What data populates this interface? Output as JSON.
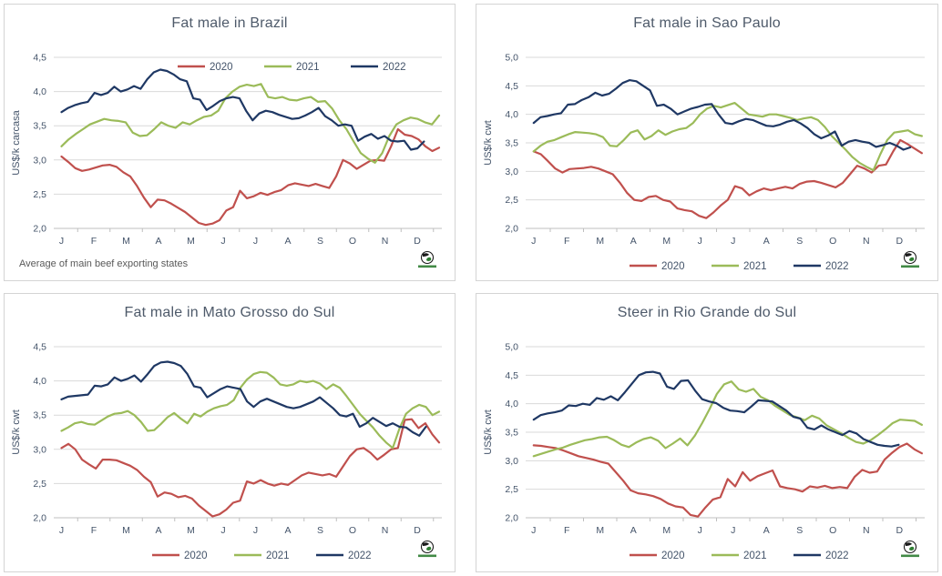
{
  "style": {
    "series_colors": {
      "2020": "#C0504D",
      "2021": "#9BBB59",
      "2022": "#1F3864"
    },
    "grid_color": "#D9D9D9",
    "axis_line_color": "#BFBFBF",
    "axis_text_color": "#44546A",
    "title_color": "#4E5A6A",
    "footnote_color": "#595959",
    "logo_green": "#2E7D32",
    "logo_dark": "#1A1A1A"
  },
  "months": [
    "J",
    "F",
    "M",
    "A",
    "M",
    "J",
    "J",
    "A",
    "S",
    "O",
    "N",
    "D"
  ],
  "chart_data": [
    {
      "type": "line",
      "title": "Fat male in Brazil",
      "ylabel": "US$/k carcasa",
      "ylim": [
        2.0,
        4.5
      ],
      "ystep": 0.5,
      "decimal_style": "comma",
      "grid": true,
      "legend_position": "top-right-inset",
      "legend_entries": [
        "2020",
        "2021",
        "2022"
      ],
      "footnote": "Average of main beef exporting states",
      "x_categories": [
        "J",
        "F",
        "M",
        "A",
        "M",
        "J",
        "J",
        "A",
        "S",
        "O",
        "N",
        "D"
      ],
      "series": [
        {
          "name": "2020",
          "span": 1.0,
          "values": [
            3.05,
            2.97,
            2.88,
            2.84,
            2.86,
            2.89,
            2.92,
            2.93,
            2.9,
            2.82,
            2.76,
            2.62,
            2.45,
            2.31,
            2.42,
            2.41,
            2.36,
            2.3,
            2.24,
            2.16,
            2.08,
            2.05,
            2.07,
            2.12,
            2.26,
            2.31,
            2.55,
            2.44,
            2.47,
            2.52,
            2.49,
            2.53,
            2.56,
            2.63,
            2.66,
            2.64,
            2.62,
            2.65,
            2.62,
            2.59,
            2.76,
            3.0,
            2.95,
            2.87,
            2.93,
            2.99,
            3.0,
            2.99,
            3.2,
            3.45,
            3.37,
            3.35,
            3.3,
            3.2,
            3.13,
            3.18
          ]
        },
        {
          "name": "2021",
          "span": 1.0,
          "values": [
            3.2,
            3.3,
            3.38,
            3.45,
            3.52,
            3.56,
            3.6,
            3.58,
            3.57,
            3.55,
            3.4,
            3.35,
            3.36,
            3.45,
            3.55,
            3.5,
            3.47,
            3.55,
            3.52,
            3.58,
            3.63,
            3.65,
            3.72,
            3.9,
            4.0,
            4.07,
            4.1,
            4.08,
            4.11,
            3.92,
            3.9,
            3.92,
            3.88,
            3.87,
            3.9,
            3.92,
            3.85,
            3.86,
            3.75,
            3.58,
            3.45,
            3.27,
            3.1,
            3.02,
            2.96,
            3.1,
            3.35,
            3.52,
            3.58,
            3.62,
            3.6,
            3.55,
            3.52,
            3.65
          ]
        },
        {
          "name": "2022",
          "span": 0.96,
          "values": [
            3.7,
            3.76,
            3.8,
            3.83,
            3.85,
            3.98,
            3.95,
            3.98,
            4.07,
            4.0,
            4.03,
            4.08,
            4.04,
            4.18,
            4.28,
            4.32,
            4.3,
            4.25,
            4.18,
            4.15,
            3.9,
            3.88,
            3.73,
            3.79,
            3.86,
            3.9,
            3.92,
            3.9,
            3.72,
            3.58,
            3.68,
            3.72,
            3.7,
            3.66,
            3.63,
            3.6,
            3.61,
            3.65,
            3.7,
            3.76,
            3.64,
            3.58,
            3.5,
            3.52,
            3.5,
            3.28,
            3.34,
            3.38,
            3.31,
            3.35,
            3.28,
            3.27,
            3.28,
            3.15,
            3.17,
            3.27
          ]
        }
      ]
    },
    {
      "type": "line",
      "title": "Fat male in Sao Paulo",
      "ylabel": "US$/k cwt",
      "ylim": [
        2.0,
        5.0
      ],
      "ystep": 0.5,
      "decimal_style": "comma",
      "grid": true,
      "legend_position": "bottom",
      "legend_entries": [
        "2020",
        "2021",
        "2022"
      ],
      "footnote": "",
      "x_categories": [
        "J",
        "F",
        "M",
        "A",
        "M",
        "J",
        "J",
        "A",
        "S",
        "O",
        "N",
        "D"
      ],
      "series": [
        {
          "name": "2020",
          "span": 1.0,
          "values": [
            3.35,
            3.3,
            3.18,
            3.05,
            2.98,
            3.04,
            3.05,
            3.06,
            3.08,
            3.05,
            3.0,
            2.95,
            2.8,
            2.62,
            2.5,
            2.48,
            2.55,
            2.57,
            2.5,
            2.47,
            2.35,
            2.32,
            2.3,
            2.22,
            2.18,
            2.28,
            2.4,
            2.5,
            2.74,
            2.7,
            2.58,
            2.65,
            2.7,
            2.67,
            2.7,
            2.73,
            2.7,
            2.78,
            2.82,
            2.83,
            2.8,
            2.76,
            2.72,
            2.8,
            2.95,
            3.1,
            3.05,
            2.98,
            3.1,
            3.12,
            3.35,
            3.55,
            3.48,
            3.4,
            3.32
          ]
        },
        {
          "name": "2021",
          "span": 1.0,
          "values": [
            3.35,
            3.45,
            3.52,
            3.55,
            3.6,
            3.65,
            3.69,
            3.68,
            3.67,
            3.65,
            3.6,
            3.45,
            3.44,
            3.55,
            3.68,
            3.72,
            3.56,
            3.62,
            3.72,
            3.64,
            3.7,
            3.74,
            3.76,
            3.85,
            4.0,
            4.1,
            4.15,
            4.12,
            4.16,
            4.2,
            4.1,
            4.0,
            3.98,
            3.96,
            4.0,
            4.0,
            3.97,
            3.94,
            3.9,
            3.93,
            3.95,
            3.9,
            3.78,
            3.62,
            3.5,
            3.38,
            3.25,
            3.15,
            3.08,
            3.02,
            3.3,
            3.55,
            3.68,
            3.7,
            3.72,
            3.65,
            3.62
          ]
        },
        {
          "name": "2022",
          "span": 0.97,
          "values": [
            3.85,
            3.95,
            3.97,
            4.0,
            4.02,
            4.17,
            4.18,
            4.25,
            4.3,
            4.38,
            4.33,
            4.36,
            4.45,
            4.55,
            4.6,
            4.58,
            4.5,
            4.42,
            4.15,
            4.17,
            4.1,
            4.0,
            4.05,
            4.1,
            4.13,
            4.17,
            4.18,
            4.0,
            3.85,
            3.83,
            3.88,
            3.92,
            3.9,
            3.85,
            3.8,
            3.79,
            3.82,
            3.87,
            3.9,
            3.84,
            3.76,
            3.65,
            3.58,
            3.63,
            3.7,
            3.45,
            3.52,
            3.55,
            3.52,
            3.5,
            3.43,
            3.46,
            3.5,
            3.45,
            3.38,
            3.42
          ]
        }
      ]
    },
    {
      "type": "line",
      "title": "Fat male in Mato Grosso do Sul",
      "ylabel": "US$/k cwt",
      "ylim": [
        2.0,
        4.5
      ],
      "ystep": 0.5,
      "decimal_style": "comma",
      "grid": true,
      "legend_position": "bottom",
      "legend_entries": [
        "2020",
        "2021",
        "2022"
      ],
      "footnote": "",
      "x_categories": [
        "J",
        "F",
        "M",
        "A",
        "M",
        "J",
        "J",
        "A",
        "S",
        "O",
        "N",
        "D"
      ],
      "series": [
        {
          "name": "2020",
          "span": 1.0,
          "values": [
            3.02,
            3.08,
            3.0,
            2.85,
            2.78,
            2.72,
            2.85,
            2.85,
            2.84,
            2.8,
            2.76,
            2.7,
            2.6,
            2.52,
            2.31,
            2.37,
            2.35,
            2.3,
            2.32,
            2.28,
            2.18,
            2.1,
            2.02,
            2.05,
            2.12,
            2.22,
            2.25,
            2.53,
            2.5,
            2.55,
            2.5,
            2.47,
            2.5,
            2.48,
            2.55,
            2.62,
            2.66,
            2.64,
            2.62,
            2.64,
            2.6,
            2.75,
            2.9,
            3.0,
            3.02,
            2.95,
            2.85,
            2.92,
            3.0,
            3.02,
            3.43,
            3.44,
            3.31,
            3.38,
            3.22,
            3.1
          ]
        },
        {
          "name": "2021",
          "span": 1.0,
          "values": [
            3.27,
            3.32,
            3.38,
            3.4,
            3.37,
            3.36,
            3.42,
            3.48,
            3.52,
            3.53,
            3.56,
            3.5,
            3.4,
            3.27,
            3.28,
            3.37,
            3.47,
            3.53,
            3.45,
            3.38,
            3.52,
            3.48,
            3.55,
            3.6,
            3.63,
            3.65,
            3.72,
            3.9,
            4.02,
            4.1,
            4.13,
            4.12,
            4.05,
            3.95,
            3.93,
            3.95,
            4.0,
            3.98,
            4.0,
            3.96,
            3.88,
            3.95,
            3.9,
            3.78,
            3.65,
            3.52,
            3.42,
            3.32,
            3.2,
            3.1,
            3.02,
            3.3,
            3.52,
            3.6,
            3.65,
            3.62,
            3.5,
            3.55
          ]
        },
        {
          "name": "2022",
          "span": 0.965,
          "values": [
            3.73,
            3.77,
            3.78,
            3.79,
            3.8,
            3.93,
            3.92,
            3.95,
            4.05,
            4.0,
            4.03,
            4.08,
            3.99,
            4.1,
            4.22,
            4.27,
            4.28,
            4.26,
            4.22,
            4.1,
            3.92,
            3.9,
            3.76,
            3.82,
            3.88,
            3.92,
            3.9,
            3.88,
            3.7,
            3.62,
            3.7,
            3.74,
            3.7,
            3.66,
            3.62,
            3.6,
            3.62,
            3.66,
            3.7,
            3.76,
            3.68,
            3.6,
            3.5,
            3.48,
            3.52,
            3.33,
            3.38,
            3.46,
            3.4,
            3.34,
            3.38,
            3.33,
            3.32,
            3.25,
            3.2,
            3.33
          ]
        }
      ]
    },
    {
      "type": "line",
      "title": "Steer in Rio Grande do Sul",
      "ylabel": "US$/k cwt",
      "ylim": [
        2.0,
        5.0
      ],
      "ystep": 0.5,
      "decimal_style": "comma",
      "grid": true,
      "legend_position": "bottom",
      "legend_entries": [
        "2020",
        "2021",
        "2022"
      ],
      "footnote": "",
      "x_categories": [
        "J",
        "F",
        "M",
        "A",
        "M",
        "J",
        "J",
        "A",
        "S",
        "O",
        "N",
        "D"
      ],
      "series": [
        {
          "name": "2020",
          "span": 1.0,
          "values": [
            3.27,
            3.26,
            3.24,
            3.22,
            3.18,
            3.13,
            3.08,
            3.05,
            3.02,
            2.98,
            2.95,
            2.8,
            2.65,
            2.48,
            2.43,
            2.41,
            2.38,
            2.33,
            2.25,
            2.2,
            2.18,
            2.05,
            2.02,
            2.18,
            2.32,
            2.36,
            2.68,
            2.55,
            2.8,
            2.65,
            2.73,
            2.78,
            2.83,
            2.55,
            2.52,
            2.5,
            2.46,
            2.55,
            2.53,
            2.56,
            2.52,
            2.54,
            2.52,
            2.72,
            2.84,
            2.79,
            2.81,
            3.02,
            3.14,
            3.24,
            3.3,
            3.2,
            3.13
          ]
        },
        {
          "name": "2021",
          "span": 1.0,
          "values": [
            3.08,
            3.12,
            3.16,
            3.2,
            3.23,
            3.28,
            3.32,
            3.36,
            3.38,
            3.41,
            3.42,
            3.36,
            3.28,
            3.24,
            3.32,
            3.38,
            3.41,
            3.35,
            3.22,
            3.3,
            3.39,
            3.27,
            3.44,
            3.66,
            3.9,
            4.17,
            4.34,
            4.39,
            4.25,
            4.21,
            4.26,
            4.12,
            4.06,
            3.96,
            3.88,
            3.8,
            3.76,
            3.71,
            3.79,
            3.74,
            3.62,
            3.55,
            3.48,
            3.4,
            3.33,
            3.3,
            3.36,
            3.45,
            3.55,
            3.66,
            3.72,
            3.71,
            3.7,
            3.63
          ]
        },
        {
          "name": "2022",
          "span": 0.94,
          "values": [
            3.72,
            3.8,
            3.83,
            3.85,
            3.88,
            3.97,
            3.96,
            4.0,
            3.98,
            4.1,
            4.07,
            4.13,
            4.06,
            4.2,
            4.35,
            4.5,
            4.55,
            4.56,
            4.53,
            4.3,
            4.26,
            4.4,
            4.41,
            4.23,
            4.08,
            4.04,
            4.01,
            3.93,
            3.88,
            3.87,
            3.85,
            3.95,
            4.06,
            4.05,
            4.04,
            3.96,
            3.88,
            3.77,
            3.74,
            3.58,
            3.55,
            3.62,
            3.55,
            3.5,
            3.45,
            3.52,
            3.48,
            3.38,
            3.33,
            3.28,
            3.26,
            3.25,
            3.28
          ]
        }
      ]
    }
  ]
}
